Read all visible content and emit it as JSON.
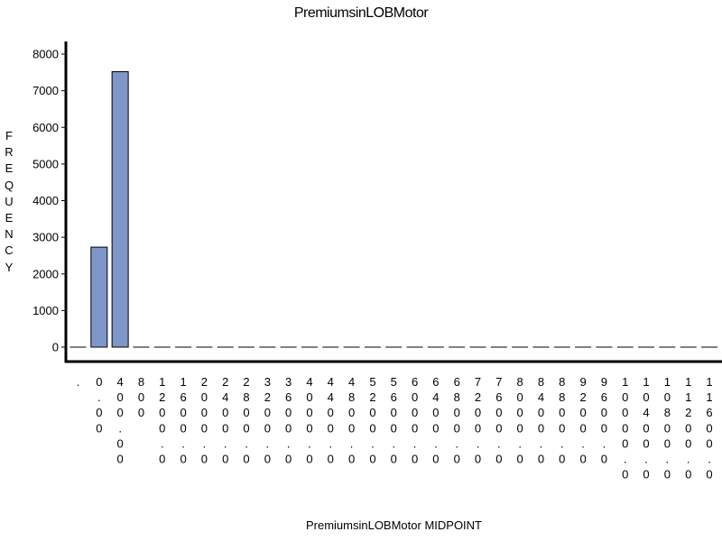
{
  "chart_data": {
    "type": "bar",
    "title": "PremiumsinLOBMotor",
    "xlabel": "PremiumsinLOBMotor MIDPOINT",
    "ylabel": "FREQUENCY",
    "ylabel_letters": [
      "F",
      "R",
      "E",
      "Q",
      "U",
      "E",
      "N",
      "C",
      "Y"
    ],
    "ylim": [
      0,
      8000
    ],
    "yticks": [
      "0",
      "1000",
      "2000",
      "3000",
      "4000",
      "5000",
      "6000",
      "7000",
      "8000"
    ],
    "categories": [
      ".",
      "0.00",
      "400.00",
      "800",
      "1200.0",
      "1600.0",
      "2000.0",
      "2400.0",
      "2800.0",
      "3200.0",
      "3600.0",
      "4000.0",
      "4400.0",
      "4800.0",
      "5200.0",
      "5600.0",
      "6000.0",
      "6400.0",
      "6800.0",
      "7200.0",
      "7600.0",
      "8000.0",
      "8400.0",
      "8800.0",
      "9200.0",
      "9600.0",
      "10000.0",
      "10400.0",
      "10800.0",
      "11200.0",
      "11600.0"
    ],
    "values": [
      20,
      2730,
      7520,
      0,
      0,
      0,
      0,
      0,
      0,
      5,
      0,
      5,
      5,
      0,
      0,
      5,
      0,
      0,
      0,
      0,
      0,
      0,
      0,
      5,
      0,
      0,
      0,
      0,
      0,
      0,
      5
    ],
    "bar_color": "#7f96c8",
    "grid": false,
    "legend": "none"
  }
}
